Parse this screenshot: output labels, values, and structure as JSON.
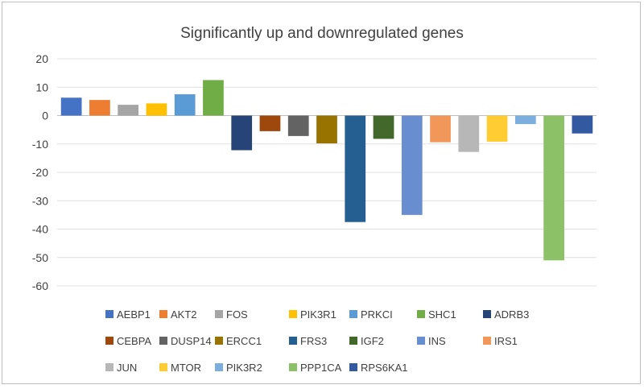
{
  "chart_data": {
    "type": "bar",
    "title": "Significantly up and downregulated genes",
    "xlabel": "",
    "ylabel": "",
    "ylim": [
      -60,
      20
    ],
    "yticks": [
      20,
      10,
      0,
      -10,
      -20,
      -30,
      -40,
      -50,
      -60
    ],
    "grid": true,
    "legend_position": "bottom",
    "series": [
      {
        "name": "AEBP1",
        "value": 6.3,
        "color": "#4472c4"
      },
      {
        "name": "AKT2",
        "value": 5.5,
        "color": "#ed7d31"
      },
      {
        "name": "FOS",
        "value": 3.8,
        "color": "#a5a5a5"
      },
      {
        "name": "PIK3R1",
        "value": 4.3,
        "color": "#ffc000"
      },
      {
        "name": "PRKCI",
        "value": 7.5,
        "color": "#5b9bd5"
      },
      {
        "name": "SHC1",
        "value": 12.5,
        "color": "#70ad47"
      },
      {
        "name": "ADRB3",
        "value": -12.2,
        "color": "#264478"
      },
      {
        "name": "CEBPA",
        "value": -5.5,
        "color": "#9e480e"
      },
      {
        "name": "DUSP14",
        "value": -7.2,
        "color": "#636363"
      },
      {
        "name": "ERCC1",
        "value": -9.8,
        "color": "#997300"
      },
      {
        "name": "FRS3",
        "value": -37.5,
        "color": "#255e91"
      },
      {
        "name": "IGF2",
        "value": -8.2,
        "color": "#43682b"
      },
      {
        "name": "INS",
        "value": -35.0,
        "color": "#698ed0"
      },
      {
        "name": "IRS1",
        "value": -9.4,
        "color": "#f1975a"
      },
      {
        "name": "JUN",
        "value": -12.8,
        "color": "#b7b7b7"
      },
      {
        "name": "MTOR",
        "value": -9.2,
        "color": "#ffcd33"
      },
      {
        "name": "PIK3R2",
        "value": -3.0,
        "color": "#7cafdd"
      },
      {
        "name": "PPP1CA",
        "value": -51.0,
        "color": "#8cc168"
      },
      {
        "name": "RPS6KA1",
        "value": -6.3,
        "color": "#335aa1"
      }
    ]
  }
}
